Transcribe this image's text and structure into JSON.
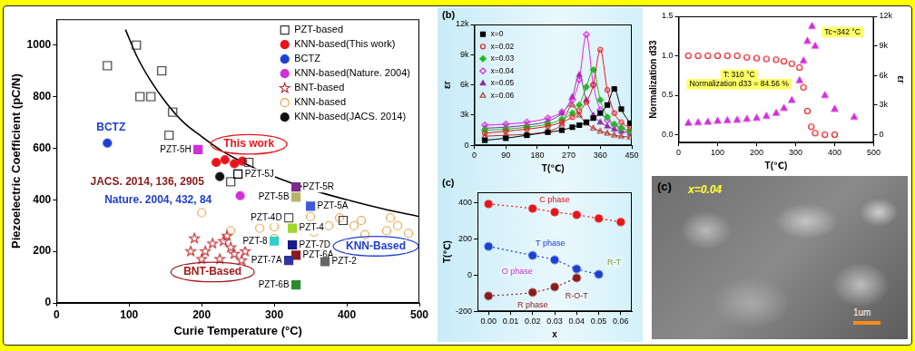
{
  "chart_data": [
    {
      "type": "scatter",
      "x_label": "Curie Temperature (°C)",
      "y_label": "Piezoelectric Coefficient (pC/N)",
      "xlim": [
        0,
        500
      ],
      "xticks": [
        0,
        100,
        200,
        300,
        400,
        500
      ],
      "ylim": [
        0,
        1100
      ],
      "yticks": [
        0,
        200,
        400,
        600,
        800,
        1000
      ],
      "grid": false,
      "legend": "upper right",
      "series": [
        {
          "name": "PZT-based",
          "color": "#333333",
          "marker": "open_square",
          "x": [
            70,
            110,
            115,
            130,
            145,
            155,
            160,
            240,
            265,
            395
          ],
          "values": [
            920,
            1000,
            800,
            800,
            900,
            650,
            740,
            470,
            545,
            320
          ]
        },
        {
          "name": "KNN-based(This work)",
          "color": "#e8141b",
          "marker": "circle",
          "x": [
            220,
            232,
            245,
            256
          ],
          "values": [
            545,
            555,
            540,
            550
          ]
        },
        {
          "name": "BCTZ",
          "color": "#1f3fd0",
          "marker": "circle",
          "x": [
            70
          ],
          "values": [
            620
          ]
        },
        {
          "name": "KNN-based(Nature. 2004)",
          "color": "#d12fd9",
          "marker": "circle",
          "x": [
            253
          ],
          "values": [
            416
          ]
        },
        {
          "name": "BNT-based",
          "color": "#c0393b",
          "marker": "open_star",
          "x": [
            205,
            230,
            245,
            225,
            215,
            240,
            255,
            235,
            200,
            260,
            190,
            185
          ],
          "values": [
            200,
            240,
            190,
            170,
            230,
            215,
            165,
            260,
            170,
            200,
            250,
            200
          ]
        },
        {
          "name": "KNN-based",
          "color": "#e8a040",
          "marker": "open_circle",
          "x": [
            200,
            240,
            280,
            300,
            300,
            355,
            375,
            390,
            410,
            425,
            455,
            470,
            485,
            350,
            420,
            460
          ],
          "values": [
            350,
            280,
            290,
            295,
            250,
            275,
            300,
            330,
            300,
            265,
            280,
            300,
            270,
            335,
            320,
            330
          ]
        },
        {
          "name": "KNN-based(JACS. 2014)",
          "color": "#111111",
          "marker": "circle",
          "x": [
            225
          ],
          "values": [
            490
          ]
        },
        {
          "type": "line",
          "color": "#000000",
          "marker": "none",
          "line_style": "solid",
          "x": [
            95,
            110,
            130,
            150,
            175,
            200,
            225,
            250,
            275,
            300,
            350,
            400,
            450,
            500
          ],
          "values": [
            1060,
            960,
            860,
            780,
            700,
            645,
            595,
            555,
            520,
            490,
            440,
            400,
            365,
            335
          ]
        }
      ],
      "annotations": [
        {
          "text": "This work",
          "x": 265,
          "y": 615,
          "color": "#e8141b",
          "marker": "ellipse"
        },
        {
          "text": "JACS. 2014, 136, 2905",
          "x": 125,
          "y": 470,
          "color": "#8b1a1a"
        },
        {
          "text": "Nature. 2004, 432, 84",
          "x": 140,
          "y": 400,
          "color": "#1f3fd0"
        },
        {
          "text": "BCTZ",
          "x": 75,
          "y": 680,
          "color": "#1f3fd0"
        },
        {
          "text": "KNN-Based",
          "x": 440,
          "y": 220,
          "color": "#1f3fd0",
          "marker": "ellipse"
        },
        {
          "text": "BNT-Based",
          "x": 215,
          "y": 120,
          "color": "#a01c1c",
          "marker": "ellipse"
        },
        {
          "text": "PZT-5R",
          "x": 330,
          "y": 450,
          "color": "#7b2c8f",
          "marker": "square"
        },
        {
          "text": "PZT-5B",
          "x": 330,
          "y": 410,
          "color": "#b5b56a",
          "marker": "square"
        },
        {
          "text": "PZT-5A",
          "x": 350,
          "y": 375,
          "color": "#3b5bdb",
          "marker": "square"
        },
        {
          "text": "PZT-4D",
          "x": 320,
          "y": 330,
          "color": "#555555",
          "marker": "open_square"
        },
        {
          "text": "PZT-4",
          "x": 325,
          "y": 290,
          "color": "#a4d62b",
          "marker": "square"
        },
        {
          "text": "PZT-8",
          "x": 300,
          "y": 240,
          "color": "#33cccc",
          "marker": "square"
        },
        {
          "text": "PZT-7D",
          "x": 325,
          "y": 225,
          "color": "#1a1a8c",
          "marker": "square"
        },
        {
          "text": "PZT-5H",
          "x": 195,
          "y": 595,
          "color": "#d12fd9",
          "marker": "square"
        },
        {
          "text": "PZT-6A",
          "x": 330,
          "y": 185,
          "color": "#8b1a1a",
          "marker": "square"
        },
        {
          "text": "PZT-7A",
          "x": 320,
          "y": 165,
          "color": "#333399",
          "marker": "square"
        },
        {
          "text": "PZT-2",
          "x": 370,
          "y": 160,
          "color": "#666666",
          "marker": "square"
        },
        {
          "text": "PZT-6B",
          "x": 330,
          "y": 70,
          "color": "#2e8b2e",
          "marker": "square"
        },
        {
          "text": "PZT-5J",
          "x": 250,
          "y": 500,
          "color": "#000000",
          "marker": "open_square"
        }
      ]
    },
    {
      "type": "line",
      "title": "(b)",
      "x_label": "T(℃)",
      "y_label": "εr",
      "xlim": [
        0,
        450
      ],
      "xticks": [
        0,
        90,
        180,
        270,
        360,
        450
      ],
      "ylim": [
        0,
        12000
      ],
      "yticks": [
        0,
        {
          "value": 3000,
          "label": "3k"
        },
        {
          "value": 6000,
          "label": "6k"
        },
        {
          "value": 9000,
          "label": "9k"
        },
        {
          "value": 12000,
          "label": "12k"
        }
      ],
      "grid": false,
      "legend": "upper left",
      "x": [
        30,
        90,
        150,
        210,
        250,
        280,
        300,
        320,
        340,
        360,
        380,
        400,
        420,
        445
      ],
      "series": [
        {
          "name": "x=0",
          "color": "#000000",
          "marker": "square",
          "values": [
            500,
            700,
            1000,
            1300,
            1500,
            1800,
            2000,
            2300,
            2700,
            3200,
            4000,
            5600,
            3600,
            2200
          ]
        },
        {
          "name": "x=0.02",
          "color": "#e8141b",
          "marker": "open_circle",
          "values": [
            1200,
            1400,
            1600,
            1900,
            2300,
            2800,
            3400,
            4300,
            6000,
            9500,
            5500,
            3200,
            2300,
            1700
          ]
        },
        {
          "name": "x=0.03",
          "color": "#22bb22",
          "marker": "diamond",
          "values": [
            1500,
            1600,
            1800,
            2100,
            2600,
            3200,
            4000,
            5800,
            7500,
            4500,
            2800,
            2100,
            1700,
            1400
          ]
        },
        {
          "name": "x=0.04",
          "color": "#e020e0",
          "marker": "open_diamond",
          "values": [
            2000,
            2100,
            2300,
            2700,
            3300,
            4500,
            6500,
            11000,
            6000,
            3500,
            2500,
            2000,
            1700,
            1400
          ]
        },
        {
          "name": "x=0.05",
          "color": "#8b2b9b",
          "marker": "triangle",
          "values": [
            1700,
            1800,
            2000,
            2400,
            3200,
            4800,
            7000,
            4500,
            3000,
            2300,
            1900,
            1600,
            1400,
            1200
          ]
        },
        {
          "name": "x=0.06",
          "color": "#b03020",
          "marker": "open_triangle",
          "values": [
            900,
            1000,
            1100,
            1400,
            2100,
            4000,
            3000,
            2200,
            1700,
            1400,
            1200,
            1000,
            900,
            800
          ]
        }
      ]
    },
    {
      "type": "line",
      "title": "(c)",
      "x_label": "x",
      "y_label": "T(℃)",
      "xlim": [
        -0.005,
        0.065
      ],
      "xticks": [
        {
          "value": 0,
          "label": "0.00"
        },
        0.01,
        0.02,
        0.03,
        0.04,
        0.05,
        0.06
      ],
      "ylim": [
        -200,
        460
      ],
      "yticks": [
        -200,
        0,
        200,
        400
      ],
      "grid": false,
      "series": [
        {
          "type": "line",
          "color": "#e8141b",
          "marker": "circle",
          "line_style": "dotted",
          "x": [
            0,
            0.02,
            0.03,
            0.04,
            0.05,
            0.06
          ],
          "values": [
            395,
            370,
            350,
            335,
            315,
            295
          ]
        },
        {
          "type": "line",
          "color": "#1f3fd0",
          "marker": "circle",
          "line_style": "dotted",
          "x": [
            0,
            0.02,
            0.03,
            0.04,
            0.05
          ],
          "values": [
            160,
            110,
            85,
            35,
            5
          ]
        },
        {
          "type": "line",
          "color": "#8b1a1a",
          "marker": "circle",
          "line_style": "dotted",
          "x": [
            0,
            0.02,
            0.03,
            0.04
          ],
          "values": [
            -115,
            -95,
            -65,
            -15
          ]
        }
      ],
      "annotations": [
        {
          "text": "C phase",
          "x": 0.03,
          "y": 415,
          "color": "#e8141b"
        },
        {
          "text": "T phase",
          "x": 0.028,
          "y": 175,
          "color": "#1f3fd0"
        },
        {
          "text": "O phase",
          "x": 0.013,
          "y": 20,
          "color": "#cc33cc"
        },
        {
          "text": "R phase",
          "x": 0.02,
          "y": -165,
          "color": "#8b1a1a"
        },
        {
          "text": "R-O-T",
          "x": 0.04,
          "y": -115,
          "color": "#8b1a1a"
        },
        {
          "text": "R-T",
          "x": 0.057,
          "y": 70,
          "color": "#8a9a2a"
        }
      ]
    },
    {
      "type": "scatter",
      "x_label": "T(℃)",
      "y_label": "Normalization d33",
      "y2_label": "εr",
      "xlim": [
        0,
        500
      ],
      "xticks": [
        0,
        100,
        200,
        300,
        400,
        500
      ],
      "ylim": [
        -0.1,
        1.5
      ],
      "yticks": [
        {
          "value": 0,
          "label": "0.0"
        },
        0.5,
        {
          "value": 1,
          "label": "1.0"
        },
        1.5
      ],
      "y2lim": [
        -800,
        12000
      ],
      "y2ticks": [
        0,
        {
          "value": 3000,
          "label": "3k"
        },
        {
          "value": 6000,
          "label": "6k"
        },
        {
          "value": 9000,
          "label": "9k"
        },
        {
          "value": 12000,
          "label": "12k"
        }
      ],
      "grid": false,
      "series": [
        {
          "type": "scatter",
          "color": "#e8141b",
          "marker": "open_circle",
          "x": [
            25,
            50,
            75,
            100,
            125,
            150,
            175,
            200,
            225,
            250,
            270,
            290,
            310,
            320,
            330,
            340,
            350,
            375,
            400
          ],
          "values": [
            1,
            1,
            1,
            1,
            1,
            1,
            0.98,
            0.97,
            0.96,
            0.95,
            0.93,
            0.9,
            0.85,
            0.6,
            0.3,
            0.1,
            0.02,
            0,
            0
          ]
        },
        {
          "type": "scatter",
          "color": "#d12fd9",
          "marker": "triangle",
          "axis": "y2",
          "x": [
            25,
            50,
            75,
            100,
            125,
            150,
            175,
            200,
            225,
            250,
            270,
            290,
            310,
            320,
            330,
            342,
            350,
            375,
            400,
            450
          ],
          "values": [
            1200,
            1250,
            1300,
            1400,
            1450,
            1500,
            1600,
            1700,
            1900,
            2200,
            2700,
            3500,
            5500,
            7500,
            9500,
            11000,
            9000,
            4000,
            2600,
            1800
          ]
        }
      ],
      "annotations": [
        {
          "text": "Tc~342 °C",
          "x": 420,
          "y": 1.3,
          "color": "#000000",
          "marker": "box"
        },
        {
          "text": "T: 310 °C",
          "x": 155,
          "y": 0.76,
          "color": "#000000",
          "marker": "box"
        },
        {
          "text": "Normalization d33 = 84.56 %",
          "x": 155,
          "y": 0.64,
          "color": "#000000",
          "marker": "box"
        }
      ]
    }
  ],
  "image": {
    "title": "(c)",
    "label": "x=0.04",
    "scale_bar": "1um"
  }
}
